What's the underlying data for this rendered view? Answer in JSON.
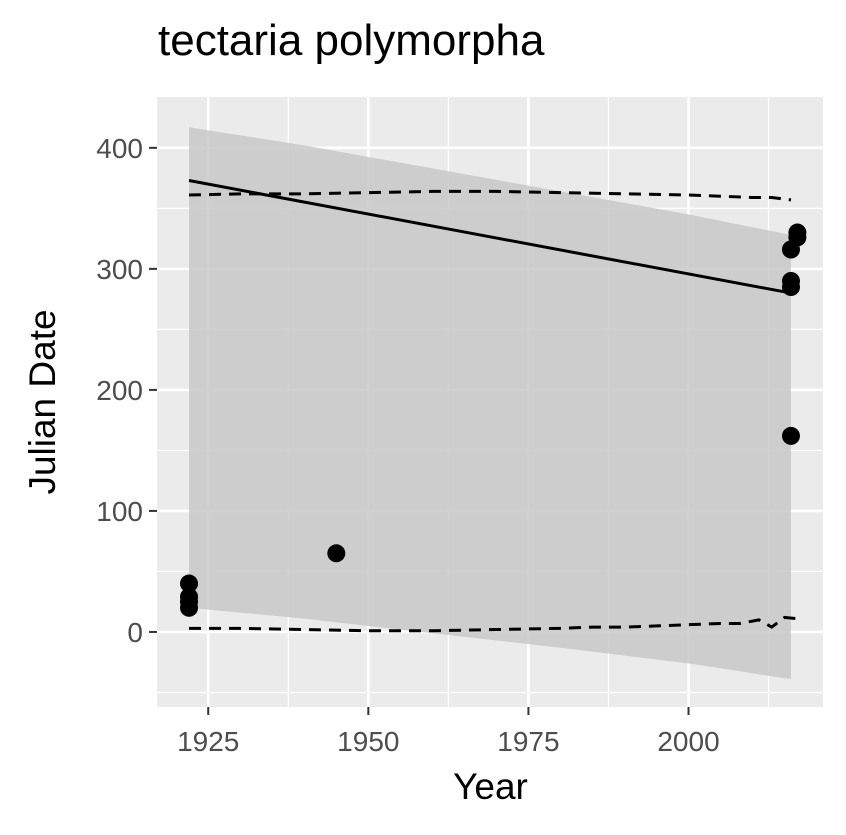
{
  "chart_data": {
    "type": "scatter",
    "title": "tectaria polymorpha",
    "xlabel": "Year",
    "ylabel": "Julian Date",
    "xlim": [
      1917,
      2021
    ],
    "ylim": [
      -62,
      442
    ],
    "x_ticks": [
      1925,
      1950,
      1975,
      2000
    ],
    "y_ticks": [
      0,
      100,
      200,
      300,
      400
    ],
    "grid": true,
    "colors": {
      "panel": "#ebebeb",
      "grid": "#ffffff",
      "ribbon": "#c8c8c8",
      "points": "#000000",
      "lines": "#000000",
      "tick_text": "#4d4d4d"
    },
    "points": [
      {
        "x": 1922,
        "y": 40
      },
      {
        "x": 1922,
        "y": 29
      },
      {
        "x": 1922,
        "y": 25
      },
      {
        "x": 1922,
        "y": 20
      },
      {
        "x": 1945,
        "y": 65
      },
      {
        "x": 2016,
        "y": 162
      },
      {
        "x": 2016,
        "y": 285
      },
      {
        "x": 2016,
        "y": 290
      },
      {
        "x": 2016,
        "y": 316
      },
      {
        "x": 2017,
        "y": 326
      },
      {
        "x": 2017,
        "y": 330
      }
    ],
    "trend_line": [
      {
        "x": 1922,
        "y": 373
      },
      {
        "x": 2016,
        "y": 280
      }
    ],
    "confidence_band": {
      "x": [
        1922,
        1940,
        1960,
        1980,
        2000,
        2016
      ],
      "upper": [
        417,
        402,
        383,
        364,
        345,
        328
      ],
      "lower": [
        20,
        11,
        -1,
        -13,
        -26,
        -39
      ]
    },
    "dashed_upper": {
      "x": [
        1922,
        1930,
        1940,
        1950,
        1960,
        1970,
        1980,
        1990,
        2000,
        2005,
        2010,
        2013,
        2016
      ],
      "y": [
        361,
        362,
        362,
        363,
        364,
        364,
        363,
        362,
        361,
        360,
        359,
        359,
        357
      ]
    },
    "dashed_lower": {
      "x": [
        1922,
        1930,
        1940,
        1950,
        1960,
        1970,
        1980,
        1985,
        1990,
        1995,
        2000,
        2005,
        2008,
        2011,
        2013,
        2015,
        2017
      ],
      "y": [
        3,
        3,
        2,
        1,
        1,
        2,
        3,
        4,
        4,
        5,
        6,
        7,
        7,
        10,
        4,
        12,
        11
      ]
    }
  }
}
